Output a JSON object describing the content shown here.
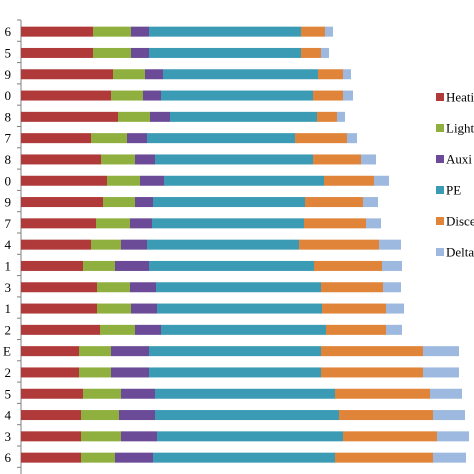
{
  "chart_data": {
    "type": "bar",
    "orientation": "horizontal",
    "stacked": true,
    "categories": [
      "6",
      "5",
      "9",
      "0",
      "8",
      "7",
      "8",
      "0",
      "9",
      "7",
      "4",
      "1",
      "3",
      "1",
      "2",
      "E",
      "2",
      "5",
      "4",
      "3",
      "6"
    ],
    "series": [
      {
        "name": "Heati",
        "color": "#B03A3A",
        "values": [
          72,
          72,
          92,
          90,
          97,
          70,
          80,
          86,
          82,
          75,
          70,
          62,
          76,
          76,
          79,
          58,
          58,
          62,
          60,
          60,
          60
        ]
      },
      {
        "name": "Light",
        "color": "#8FB03E",
        "values": [
          38,
          38,
          32,
          32,
          32,
          36,
          34,
          33,
          32,
          34,
          30,
          32,
          33,
          34,
          35,
          32,
          32,
          38,
          38,
          40,
          34
        ]
      },
      {
        "name": "Auxi",
        "color": "#6B4A97",
        "values": [
          18,
          18,
          18,
          18,
          20,
          20,
          20,
          24,
          18,
          22,
          26,
          34,
          26,
          26,
          26,
          38,
          38,
          34,
          36,
          36,
          38
        ]
      },
      {
        "name": "PE",
        "color": "#3B9BB4",
        "values": [
          152,
          152,
          155,
          152,
          147,
          148,
          158,
          160,
          152,
          152,
          152,
          165,
          165,
          165,
          165,
          172,
          172,
          180,
          184,
          186,
          182
        ]
      },
      {
        "name": "Disce",
        "color": "#E0843A",
        "values": [
          24,
          20,
          25,
          30,
          20,
          52,
          48,
          50,
          58,
          62,
          80,
          68,
          62,
          64,
          60,
          102,
          102,
          95,
          94,
          94,
          98
        ]
      },
      {
        "name": "Delta",
        "color": "#9DB9DF",
        "values": [
          8,
          8,
          8,
          10,
          8,
          10,
          15,
          15,
          15,
          15,
          22,
          20,
          18,
          18,
          16,
          36,
          36,
          32,
          32,
          32,
          33
        ]
      }
    ],
    "xlabel": "",
    "ylabel": "",
    "legend_position": "right"
  }
}
